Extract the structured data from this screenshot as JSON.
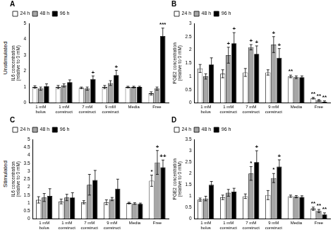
{
  "chart_data": [
    {
      "type": "bar",
      "title": "A",
      "row_label": "Unstimulated",
      "y_label": "IL6 concentration (relative to 0 mM)",
      "categories": [
        "1 mM bolus",
        "1 mM construct",
        "7 mM construct",
        "9 mM construct",
        "Media",
        "Free"
      ],
      "series": [
        {
          "name": "24 h",
          "color": "#ffffff",
          "values": [
            1.0,
            1.0,
            0.95,
            1.0,
            1.0,
            0.6
          ],
          "errors": [
            0.08,
            0.1,
            0.05,
            0.1,
            0.05,
            0.1
          ],
          "annotations": [
            null,
            null,
            null,
            null,
            null,
            null
          ]
        },
        {
          "name": "48 h",
          "color": "#a6a6a6",
          "values": [
            0.9,
            1.1,
            0.9,
            1.25,
            1.0,
            0.9
          ],
          "errors": [
            0.1,
            0.1,
            0.1,
            0.15,
            0.05,
            0.1
          ],
          "annotations": [
            null,
            null,
            null,
            null,
            null,
            null
          ]
        },
        {
          "name": "96 h",
          "color": "#000000",
          "values": [
            1.05,
            1.3,
            1.5,
            1.75,
            1.0,
            4.2
          ],
          "errors": [
            0.15,
            0.15,
            0.2,
            0.3,
            0.05,
            0.5
          ],
          "annotations": [
            null,
            null,
            "+",
            "+",
            null,
            "***"
          ]
        }
      ],
      "ylim": [
        0,
        5
      ],
      "yticks": [
        0,
        1,
        2,
        3,
        4,
        5
      ],
      "legend": "upper left",
      "grid": false
    },
    {
      "type": "bar",
      "title": "B",
      "y_label": "PGE2 concentration (relative to 0 mM)",
      "categories": [
        "1 mM bolus",
        "1 mM construct",
        "7 mM construct",
        "9 mM construct",
        "Media",
        "Free"
      ],
      "series": [
        {
          "name": "24 h",
          "color": "#ffffff",
          "values": [
            1.3,
            1.1,
            1.15,
            1.15,
            1.0,
            0.18
          ],
          "errors": [
            0.15,
            0.15,
            0.15,
            0.1,
            0.05,
            0.03
          ],
          "annotations": [
            null,
            null,
            null,
            null,
            "**",
            "**"
          ]
        },
        {
          "name": "48 h",
          "color": "#a6a6a6",
          "values": [
            1.0,
            1.8,
            2.1,
            2.2,
            0.97,
            0.1
          ],
          "errors": [
            0.1,
            0.3,
            0.1,
            0.3,
            0.05,
            0.03
          ],
          "annotations": [
            null,
            "+",
            "+",
            "+",
            null,
            "**"
          ]
        },
        {
          "name": "96 h",
          "color": "#000000",
          "values": [
            1.45,
            2.25,
            1.85,
            1.7,
            0.97,
            0.05
          ],
          "errors": [
            0.25,
            0.4,
            0.3,
            0.35,
            0.05,
            0.03
          ],
          "annotations": [
            null,
            "+",
            "+",
            "+",
            null,
            "**"
          ]
        }
      ],
      "ylim": [
        0,
        3
      ],
      "yticks": [
        0,
        0.5,
        1,
        1.5,
        2,
        2.5,
        3
      ],
      "legend": "upper left",
      "grid": false
    },
    {
      "type": "bar",
      "title": "C",
      "row_label": "Stimulated",
      "y_label": "IL6 concentration (relative to 0 mM)",
      "categories": [
        "1 mM bolus",
        "1 mM construct",
        "7 mM construct",
        "9 mM construct",
        "Media",
        "Free"
      ],
      "series": [
        {
          "name": "24 h",
          "color": "#ffffff",
          "values": [
            1.2,
            1.1,
            1.05,
            1.05,
            1.0,
            2.4
          ],
          "errors": [
            0.2,
            0.15,
            0.1,
            0.15,
            0.05,
            0.35
          ],
          "annotations": [
            null,
            null,
            null,
            null,
            null,
            "*"
          ]
        },
        {
          "name": "48 h",
          "color": "#a6a6a6",
          "values": [
            1.35,
            1.35,
            2.15,
            1.25,
            0.97,
            3.55
          ],
          "errors": [
            0.25,
            0.2,
            0.65,
            0.1,
            0.05,
            0.75
          ],
          "annotations": [
            null,
            null,
            null,
            null,
            null,
            "+"
          ]
        },
        {
          "name": "96 h",
          "color": "#000000",
          "values": [
            1.45,
            1.35,
            2.45,
            1.9,
            0.95,
            3.25
          ],
          "errors": [
            0.45,
            0.3,
            0.6,
            0.6,
            0.05,
            0.45
          ],
          "annotations": [
            null,
            null,
            null,
            null,
            null,
            "++"
          ]
        }
      ],
      "ylim": [
        0,
        5
      ],
      "yticks": [
        0,
        0.5,
        1,
        1.5,
        2,
        2.5,
        3,
        3.5,
        4,
        4.5,
        5
      ],
      "legend": "upper left",
      "grid": false
    },
    {
      "type": "bar",
      "title": "D",
      "y_label": "PGE2 concentration (relative to 0 mM)",
      "categories": [
        "1 mM bolus",
        "1 mM construct",
        "7 mM construct",
        "9 mM construct",
        "Media",
        "Free"
      ],
      "series": [
        {
          "name": "24 h",
          "color": "#ffffff",
          "values": [
            0.85,
            0.95,
            1.0,
            1.05,
            1.0,
            0.45
          ],
          "errors": [
            0.07,
            0.1,
            0.1,
            0.2,
            0.05,
            0.07
          ],
          "annotations": [
            null,
            null,
            null,
            null,
            null,
            "**"
          ]
        },
        {
          "name": "48 h",
          "color": "#a6a6a6",
          "values": [
            0.9,
            1.15,
            2.0,
            1.8,
            0.98,
            0.35
          ],
          "errors": [
            0.1,
            0.15,
            0.3,
            0.2,
            0.05,
            0.07
          ],
          "annotations": [
            null,
            null,
            "*",
            "*",
            null,
            "**"
          ]
        },
        {
          "name": "96 h",
          "color": "#000000",
          "values": [
            1.5,
            1.2,
            2.5,
            2.3,
            0.97,
            0.2
          ],
          "errors": [
            0.15,
            0.15,
            0.5,
            0.3,
            0.05,
            0.07
          ],
          "annotations": [
            null,
            null,
            "+",
            "+",
            null,
            "**"
          ]
        }
      ],
      "ylim": [
        0,
        3.5
      ],
      "yticks": [
        0,
        0.5,
        1,
        1.5,
        2,
        2.5,
        3,
        3.5
      ],
      "legend": "upper left",
      "grid": false
    }
  ]
}
